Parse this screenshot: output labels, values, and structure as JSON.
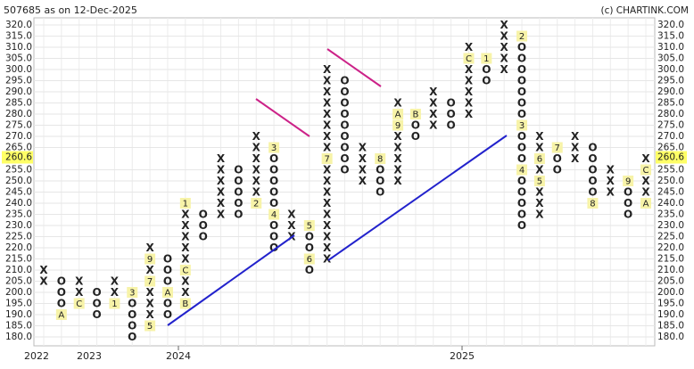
{
  "chart_data": {
    "type": "point_and_figure",
    "title": "507685 as on 12-Dec-2025",
    "source": "(c) CHARTINK.COM",
    "x_labels": [
      "2022",
      "2023",
      "2024",
      "2025"
    ],
    "box_size": 5,
    "ylim": [
      180,
      320
    ],
    "yticks": [
      {
        "value": 320,
        "label": "320.0"
      },
      {
        "value": 315,
        "label": "315.0"
      },
      {
        "value": 310,
        "label": "310.0"
      },
      {
        "value": 305,
        "label": "305.0"
      },
      {
        "value": 300,
        "label": "300.0"
      },
      {
        "value": 295,
        "label": "295.0"
      },
      {
        "value": 290,
        "label": "290.0"
      },
      {
        "value": 285,
        "label": "285.0"
      },
      {
        "value": 280,
        "label": "280.0"
      },
      {
        "value": 275,
        "label": "275.0"
      },
      {
        "value": 270,
        "label": "270.0"
      },
      {
        "value": 265,
        "label": "265.0"
      },
      {
        "value": 260.6,
        "label": "260.6"
      },
      {
        "value": 255,
        "label": "255.0"
      },
      {
        "value": 250,
        "label": "250.0"
      },
      {
        "value": 245,
        "label": "245.0"
      },
      {
        "value": 240,
        "label": "240.0"
      },
      {
        "value": 235,
        "label": "235.0"
      },
      {
        "value": 230,
        "label": "230.0"
      },
      {
        "value": 225,
        "label": "225.0"
      },
      {
        "value": 220,
        "label": "220.0"
      },
      {
        "value": 215,
        "label": "215.0"
      },
      {
        "value": 210,
        "label": "210.0"
      },
      {
        "value": 205,
        "label": "205.0"
      },
      {
        "value": 200,
        "label": "200.0"
      },
      {
        "value": 195,
        "label": "195.0"
      },
      {
        "value": 190,
        "label": "190.0"
      },
      {
        "value": 185,
        "label": "185.0"
      },
      {
        "value": 180,
        "label": "180.0"
      }
    ],
    "current_price": 260.6,
    "x_color": "#3a9a3a",
    "o_color": "#e8302a",
    "marker_color": "#f7f3a8",
    "grid": true,
    "columns": [
      {
        "type": "X",
        "low": 205,
        "high": 210,
        "months": []
      },
      {
        "type": "O",
        "low": 190,
        "high": 205,
        "months": [
          {
            "price": 190,
            "label": "A"
          }
        ]
      },
      {
        "type": "X",
        "low": 195,
        "high": 205,
        "months": [
          {
            "price": 195,
            "label": "C"
          }
        ]
      },
      {
        "type": "O",
        "low": 190,
        "high": 200,
        "months": []
      },
      {
        "type": "X",
        "low": 195,
        "high": 205,
        "months": [
          {
            "price": 195,
            "label": "1"
          }
        ]
      },
      {
        "type": "O",
        "low": 180,
        "high": 200,
        "months": [
          {
            "price": 200,
            "label": "3"
          }
        ]
      },
      {
        "type": "X",
        "low": 185,
        "high": 220,
        "months": [
          {
            "price": 185,
            "label": "5"
          },
          {
            "price": 205,
            "label": "7"
          },
          {
            "price": 215,
            "label": "9"
          }
        ]
      },
      {
        "type": "O",
        "low": 190,
        "high": 215,
        "months": [
          {
            "price": 200,
            "label": "A"
          }
        ]
      },
      {
        "type": "X",
        "low": 195,
        "high": 240,
        "months": [
          {
            "price": 195,
            "label": "B"
          },
          {
            "price": 210,
            "label": "C"
          },
          {
            "price": 240,
            "label": "1"
          }
        ]
      },
      {
        "type": "O",
        "low": 225,
        "high": 235,
        "months": []
      },
      {
        "type": "X",
        "low": 235,
        "high": 260,
        "months": []
      },
      {
        "type": "O",
        "low": 235,
        "high": 255,
        "months": []
      },
      {
        "type": "X",
        "low": 240,
        "high": 270,
        "months": [
          {
            "price": 240,
            "label": "2"
          }
        ]
      },
      {
        "type": "O",
        "low": 220,
        "high": 265,
        "months": [
          {
            "price": 265,
            "label": "3"
          },
          {
            "price": 235,
            "label": "4"
          }
        ]
      },
      {
        "type": "X",
        "low": 225,
        "high": 235,
        "months": []
      },
      {
        "type": "O",
        "low": 210,
        "high": 230,
        "months": [
          {
            "price": 230,
            "label": "5"
          },
          {
            "price": 215,
            "label": "6"
          }
        ]
      },
      {
        "type": "X",
        "low": 215,
        "high": 300,
        "months": [
          {
            "price": 260,
            "label": "7"
          }
        ]
      },
      {
        "type": "O",
        "low": 255,
        "high": 295,
        "months": []
      },
      {
        "type": "X",
        "low": 250,
        "high": 265,
        "months": []
      },
      {
        "type": "O",
        "low": 245,
        "high": 260,
        "months": [
          {
            "price": 260,
            "label": "8"
          }
        ]
      },
      {
        "type": "X",
        "low": 250,
        "high": 285,
        "months": [
          {
            "price": 275,
            "label": "9"
          },
          {
            "price": 280,
            "label": "A"
          }
        ]
      },
      {
        "type": "O",
        "low": 270,
        "high": 280,
        "months": [
          {
            "price": 280,
            "label": "B"
          }
        ]
      },
      {
        "type": "X",
        "low": 275,
        "high": 290,
        "months": []
      },
      {
        "type": "O",
        "low": 275,
        "high": 285,
        "months": []
      },
      {
        "type": "X",
        "low": 280,
        "high": 310,
        "months": [
          {
            "price": 305,
            "label": "C"
          }
        ]
      },
      {
        "type": "O",
        "low": 295,
        "high": 305,
        "months": [
          {
            "price": 305,
            "label": "1"
          }
        ]
      },
      {
        "type": "X",
        "low": 300,
        "high": 320,
        "months": []
      },
      {
        "type": "O",
        "low": 230,
        "high": 315,
        "months": [
          {
            "price": 315,
            "label": "2"
          },
          {
            "price": 275,
            "label": "3"
          },
          {
            "price": 255,
            "label": "4"
          }
        ]
      },
      {
        "type": "X",
        "low": 235,
        "high": 270,
        "months": [
          {
            "price": 250,
            "label": "5"
          },
          {
            "price": 260,
            "label": "6"
          }
        ]
      },
      {
        "type": "O",
        "low": 255,
        "high": 265,
        "months": [
          {
            "price": 265,
            "label": "7"
          }
        ]
      },
      {
        "type": "X",
        "low": 260,
        "high": 270,
        "months": []
      },
      {
        "type": "O",
        "low": 240,
        "high": 265,
        "months": [
          {
            "price": 240,
            "label": "8"
          }
        ]
      },
      {
        "type": "X",
        "low": 245,
        "high": 255,
        "months": []
      },
      {
        "type": "O",
        "low": 235,
        "high": 250,
        "months": [
          {
            "price": 250,
            "label": "9"
          }
        ]
      },
      {
        "type": "X",
        "low": 240,
        "high": 260,
        "months": [
          {
            "price": 240,
            "label": "A"
          },
          {
            "price": 255,
            "label": "C"
          }
        ]
      }
    ]
  }
}
